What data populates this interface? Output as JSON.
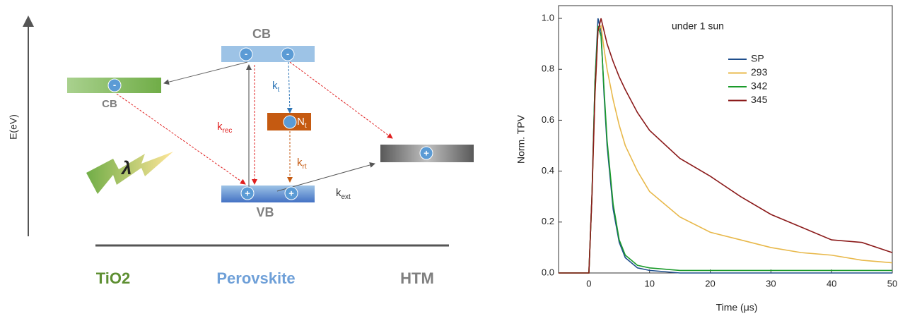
{
  "diagram": {
    "axis_label": "E(eV)",
    "cb_perovskite": "CB",
    "cb_tio2": "CB",
    "vb": "VB",
    "electron_sign": "-",
    "hole_sign": "+",
    "light": "λ",
    "trap": {
      "main": "N",
      "sub": "t"
    },
    "rates": {
      "k_t": {
        "main": "k",
        "sub": "t"
      },
      "k_rec": {
        "main": "k",
        "sub": "rec"
      },
      "k_rt": {
        "main": "k",
        "sub": "rt"
      },
      "k_ext": {
        "main": "k",
        "sub": "ext"
      }
    },
    "layers": [
      "TiO2",
      "Perovskite",
      "HTM"
    ]
  },
  "chart_data": {
    "type": "line",
    "xlabel": "Time (μs)",
    "ylabel": "Norm. TPV",
    "annotation": "under 1 sun",
    "x": [
      -5,
      -2,
      0,
      0.5,
      1,
      1.5,
      2,
      2.5,
      3,
      4,
      5,
      6,
      8,
      10,
      15,
      20,
      25,
      30,
      35,
      40,
      45,
      50
    ],
    "series": [
      {
        "name": "SP",
        "color": "#1f4e8c",
        "values": [
          0,
          0,
          0,
          0.3,
          0.75,
          1.0,
          0.95,
          0.7,
          0.5,
          0.25,
          0.12,
          0.06,
          0.02,
          0.01,
          0,
          0,
          0,
          0,
          0,
          0,
          0,
          0
        ]
      },
      {
        "name": "293",
        "color": "#e8b84a",
        "values": [
          0,
          0,
          0,
          0.3,
          0.7,
          0.95,
          0.97,
          0.88,
          0.8,
          0.68,
          0.58,
          0.5,
          0.4,
          0.32,
          0.22,
          0.16,
          0.13,
          0.1,
          0.08,
          0.07,
          0.05,
          0.04
        ]
      },
      {
        "name": "342",
        "color": "#1a9a2a",
        "values": [
          0,
          0,
          0,
          0.3,
          0.75,
          0.97,
          0.93,
          0.72,
          0.52,
          0.27,
          0.13,
          0.07,
          0.03,
          0.02,
          0.01,
          0.01,
          0.01,
          0.01,
          0.01,
          0.01,
          0.01,
          0.01
        ]
      },
      {
        "name": "345",
        "color": "#8b1a1a",
        "values": [
          0,
          0,
          0,
          0.3,
          0.7,
          0.95,
          1.0,
          0.95,
          0.9,
          0.83,
          0.77,
          0.72,
          0.63,
          0.56,
          0.45,
          0.38,
          0.3,
          0.23,
          0.18,
          0.13,
          0.12,
          0.08
        ]
      }
    ],
    "xlim": [
      -5,
      50
    ],
    "xticks": [
      0,
      10,
      20,
      30,
      40,
      50
    ],
    "ylim": [
      0,
      1.05
    ],
    "yticks": [
      {
        "value": 0,
        "label": "0.0"
      },
      0.2,
      0.4,
      0.6,
      0.8,
      {
        "value": 1,
        "label": "1.0"
      }
    ],
    "legend": "upper right"
  }
}
